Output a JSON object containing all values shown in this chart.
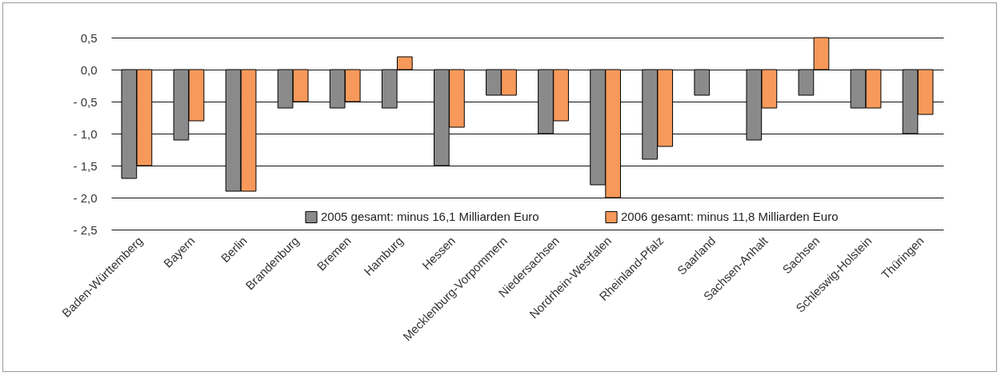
{
  "chart_data": {
    "type": "bar",
    "categories": [
      "Baden-Württemberg",
      "Bayern",
      "Berlin",
      "Brandenburg",
      "Bremen",
      "Hamburg",
      "Hessen",
      "Mecklenburg-Vorpommern",
      "Niedersachsen",
      "Nordrhein-Westfalen",
      "Rheinland-Pfalz",
      "Saarland",
      "Sachsen-Anhalt",
      "Sachsen",
      "Schleswig-Holstein",
      "Thüringen"
    ],
    "series": [
      {
        "name": "2005 gesamt: minus 16,1 Milliarden Euro",
        "color": "#8a8a8a",
        "values": [
          -1.7,
          -1.1,
          -1.9,
          -0.6,
          -0.6,
          -0.6,
          -1.5,
          -0.4,
          -1.0,
          -1.8,
          -1.4,
          -0.4,
          -1.1,
          -0.4,
          -0.6,
          -1.0
        ]
      },
      {
        "name": "2006 gesamt: minus 11,8 Milliarden Euro",
        "color": "#f7995a",
        "values": [
          -1.5,
          -0.8,
          -1.9,
          -0.5,
          -0.5,
          0.2,
          -0.9,
          -0.4,
          -0.8,
          -2.0,
          -1.2,
          null,
          -0.6,
          0.5,
          -0.6,
          -0.7
        ]
      }
    ],
    "ylim": [
      -2.5,
      0.5
    ],
    "yticks": [
      {
        "value": -2.5,
        "label": "- 2,5"
      },
      {
        "value": -2.0,
        "label": "- 2,0"
      },
      {
        "value": -1.5,
        "label": "- 1,5"
      },
      {
        "value": -1.0,
        "label": "- 1,0"
      },
      {
        "value": -0.5,
        "label": "- 0,5"
      },
      {
        "value": 0,
        "label": "0,0"
      },
      {
        "value": 0.5,
        "label": "0,5"
      }
    ],
    "grid": "y",
    "legend": "bottom"
  }
}
